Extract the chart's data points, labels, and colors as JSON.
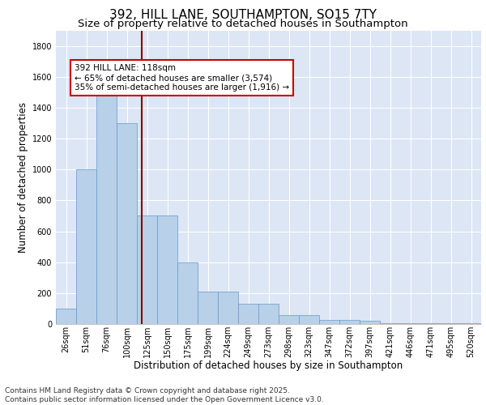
{
  "title_line1": "392, HILL LANE, SOUTHAMPTON, SO15 7TY",
  "title_line2": "Size of property relative to detached houses in Southampton",
  "xlabel": "Distribution of detached houses by size in Southampton",
  "ylabel": "Number of detached properties",
  "categories": [
    "26sqm",
    "51sqm",
    "76sqm",
    "100sqm",
    "125sqm",
    "150sqm",
    "175sqm",
    "199sqm",
    "224sqm",
    "249sqm",
    "273sqm",
    "298sqm",
    "323sqm",
    "347sqm",
    "372sqm",
    "397sqm",
    "421sqm",
    "446sqm",
    "471sqm",
    "495sqm",
    "520sqm"
  ],
  "values": [
    100,
    1000,
    1500,
    1300,
    700,
    700,
    400,
    210,
    210,
    130,
    130,
    60,
    60,
    25,
    25,
    20,
    5,
    5,
    5,
    5,
    5
  ],
  "bar_color": "#b8d0e8",
  "bar_edge_color": "#6699cc",
  "vline_x": 3.72,
  "vline_color": "#880000",
  "annotation_text": "392 HILL LANE: 118sqm\n← 65% of detached houses are smaller (3,574)\n35% of semi-detached houses are larger (1,916) →",
  "annotation_box_color": "#ffffff",
  "annotation_box_edge_color": "#cc0000",
  "ylim": [
    0,
    1900
  ],
  "yticks": [
    0,
    200,
    400,
    600,
    800,
    1000,
    1200,
    1400,
    1600,
    1800
  ],
  "background_color": "#dce6f5",
  "grid_color": "#ffffff",
  "footer_line1": "Contains HM Land Registry data © Crown copyright and database right 2025.",
  "footer_line2": "Contains public sector information licensed under the Open Government Licence v3.0.",
  "title_fontsize": 11,
  "subtitle_fontsize": 9.5,
  "axis_label_fontsize": 8.5,
  "tick_fontsize": 7,
  "footer_fontsize": 6.5,
  "annot_fontsize": 7.5
}
